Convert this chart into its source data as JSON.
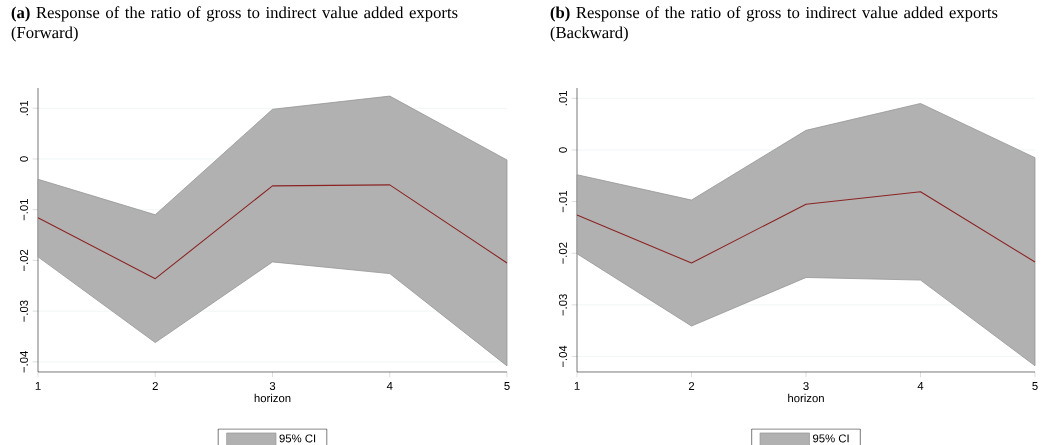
{
  "chart_data": [
    {
      "type": "line",
      "title": "**(a)** Response of the ratio of gross to indirect value added exports (Forward)",
      "xlabel": "horizon",
      "x": [
        1,
        2,
        3,
        4,
        5
      ],
      "xlim": [
        1,
        5
      ],
      "xticks": [
        1,
        2,
        3,
        4,
        5
      ],
      "ylim": [
        -0.042,
        0.014
      ],
      "yticks": [
        {
          "value": -0.04,
          "label": "−.04"
        },
        {
          "value": -0.03,
          "label": "−.03"
        },
        {
          "value": -0.02,
          "label": "−.02"
        },
        {
          "value": -0.01,
          "label": "−.01"
        },
        {
          "value": 0,
          "label": "0"
        },
        {
          "value": 0.01,
          "label": ".01"
        }
      ],
      "grid": "y",
      "legend": "bottom",
      "series": [
        {
          "name": "95% CI",
          "color": "#8b2323",
          "values": [
            -0.0116,
            -0.0236,
            -0.0053,
            -0.0051,
            -0.0205
          ],
          "lower": [
            -0.0193,
            -0.0362,
            -0.0203,
            -0.0226,
            -0.0408
          ],
          "upper": [
            -0.004,
            -0.011,
            0.0098,
            0.0124,
            -0.0002
          ]
        }
      ]
    },
    {
      "type": "line",
      "title": "**(b)** Response of the ratio of gross to indirect value added exports (Backward)",
      "xlabel": "horizon",
      "x": [
        1,
        2,
        3,
        4,
        5
      ],
      "xlim": [
        1,
        5
      ],
      "xticks": [
        1,
        2,
        3,
        4,
        5
      ],
      "ylim": [
        -0.043,
        0.012
      ],
      "yticks": [
        {
          "value": -0.04,
          "label": "−.04"
        },
        {
          "value": -0.03,
          "label": "−.03"
        },
        {
          "value": -0.02,
          "label": "−.02"
        },
        {
          "value": -0.01,
          "label": "−.01"
        },
        {
          "value": 0,
          "label": "0"
        },
        {
          "value": 0.01,
          "label": ".01"
        }
      ],
      "grid": "y",
      "legend": "bottom",
      "series": [
        {
          "name": "95% CI",
          "color": "#8b2323",
          "values": [
            -0.0126,
            -0.0219,
            -0.0105,
            -0.0081,
            -0.0217
          ],
          "lower": [
            -0.0201,
            -0.0341,
            -0.0247,
            -0.0252,
            -0.0418
          ],
          "upper": [
            -0.0048,
            -0.0097,
            0.0038,
            0.009,
            -0.0015
          ]
        }
      ]
    }
  ]
}
